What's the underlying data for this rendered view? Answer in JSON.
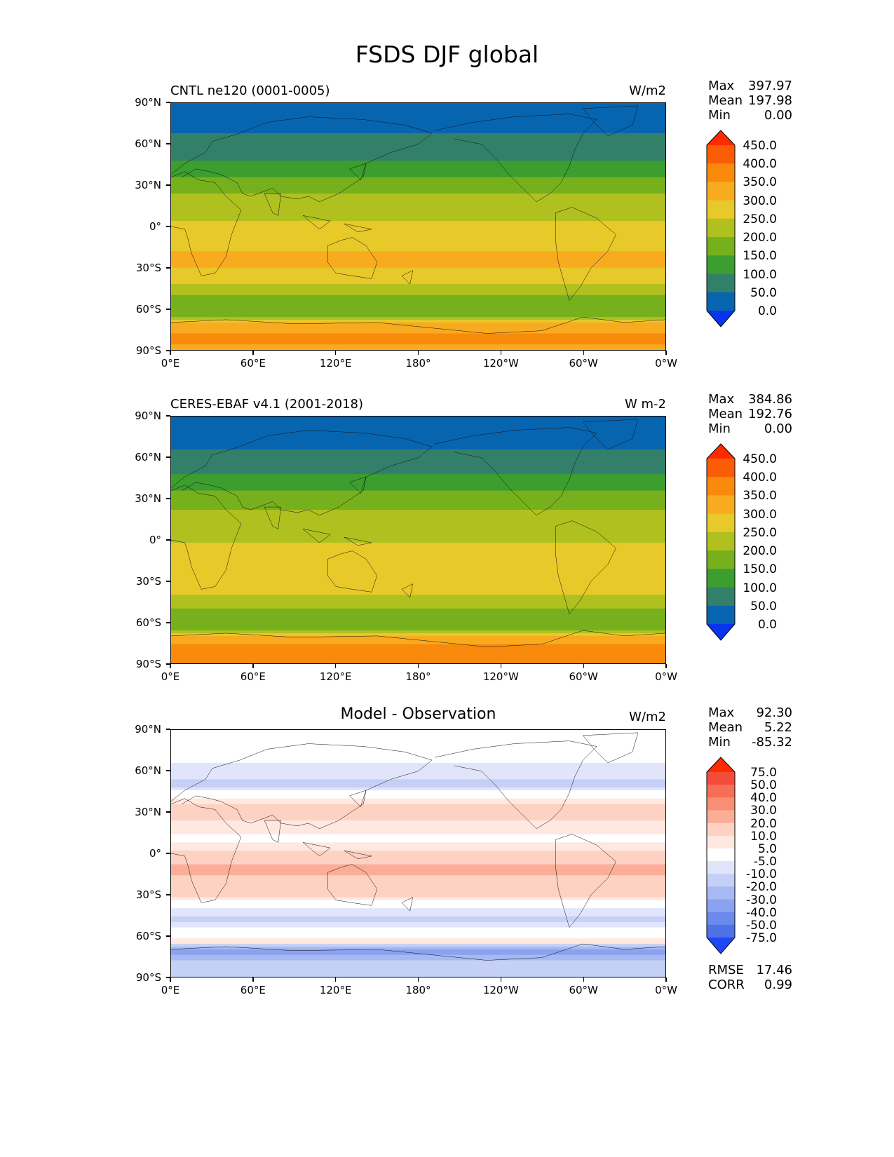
{
  "chart_data": {
    "type": "heatmap",
    "title": "FSDS DJF global",
    "x_ticks": [
      "0°E",
      "60°E",
      "120°E",
      "180°",
      "120°W",
      "60°W",
      "0°W"
    ],
    "y_ticks": [
      "90°N",
      "60°N",
      "30°N",
      "0°",
      "30°S",
      "60°S",
      "90°S"
    ],
    "xlim": [
      0,
      360
    ],
    "ylim": [
      -90,
      90
    ],
    "panels": [
      {
        "name": "model",
        "title_left": "CNTL ne120 (0001-0005)",
        "title_center": "",
        "units": "W/m2",
        "stats": [
          {
            "label": "Max",
            "value": "397.97"
          },
          {
            "label": "Mean",
            "value": "197.98"
          },
          {
            "label": "Min",
            "value": "0.00"
          }
        ],
        "colorbar_levels": [
          "450.0",
          "400.0",
          "350.0",
          "300.0",
          "250.0",
          "200.0",
          "150.0",
          "100.0",
          "50.0",
          "0.0"
        ],
        "colorbar_colors": [
          "#ff2a00",
          "#fb5d07",
          "#fa8a0c",
          "#f8ab1f",
          "#e7c929",
          "#b0c01f",
          "#77b01d",
          "#3c9e2e",
          "#33806a",
          "#0765b0",
          "#0834ee"
        ],
        "zonal_profile": [
          {
            "lat": 90,
            "value": 0
          },
          {
            "lat": 80,
            "value": 20
          },
          {
            "lat": 70,
            "value": 45
          },
          {
            "lat": 60,
            "value": 70
          },
          {
            "lat": 50,
            "value": 95
          },
          {
            "lat": 40,
            "value": 135
          },
          {
            "lat": 30,
            "value": 175
          },
          {
            "lat": 20,
            "value": 215
          },
          {
            "lat": 10,
            "value": 235
          },
          {
            "lat": 0,
            "value": 260
          },
          {
            "lat": -10,
            "value": 285
          },
          {
            "lat": -20,
            "value": 305
          },
          {
            "lat": -30,
            "value": 300
          },
          {
            "lat": -40,
            "value": 265
          },
          {
            "lat": -50,
            "value": 200
          },
          {
            "lat": -60,
            "value": 165
          },
          {
            "lat": -65,
            "value": 185
          },
          {
            "lat": -70,
            "value": 300
          },
          {
            "lat": -80,
            "value": 360
          },
          {
            "lat": -90,
            "value": 340
          }
        ]
      },
      {
        "name": "observation",
        "title_left": "CERES-EBAF v4.1 (2001-2018)",
        "title_center": "",
        "units": "W m-2",
        "stats": [
          {
            "label": "Max",
            "value": "384.86"
          },
          {
            "label": "Mean",
            "value": "192.76"
          },
          {
            "label": "Min",
            "value": "0.00"
          }
        ],
        "colorbar_levels": [
          "450.0",
          "400.0",
          "350.0",
          "300.0",
          "250.0",
          "200.0",
          "150.0",
          "100.0",
          "50.0",
          "0.0"
        ],
        "colorbar_colors": [
          "#ff2a00",
          "#fb5d07",
          "#fa8a0c",
          "#f8ab1f",
          "#e7c929",
          "#b0c01f",
          "#77b01d",
          "#3c9e2e",
          "#33806a",
          "#0765b0",
          "#0834ee"
        ],
        "zonal_profile": [
          {
            "lat": 90,
            "value": 0
          },
          {
            "lat": 80,
            "value": 20
          },
          {
            "lat": 70,
            "value": 40
          },
          {
            "lat": 60,
            "value": 65
          },
          {
            "lat": 50,
            "value": 90
          },
          {
            "lat": 40,
            "value": 130
          },
          {
            "lat": 30,
            "value": 170
          },
          {
            "lat": 20,
            "value": 205
          },
          {
            "lat": 10,
            "value": 225
          },
          {
            "lat": 0,
            "value": 245
          },
          {
            "lat": -10,
            "value": 270
          },
          {
            "lat": -20,
            "value": 290
          },
          {
            "lat": -30,
            "value": 285
          },
          {
            "lat": -40,
            "value": 255
          },
          {
            "lat": -50,
            "value": 195
          },
          {
            "lat": -60,
            "value": 165
          },
          {
            "lat": -65,
            "value": 190
          },
          {
            "lat": -70,
            "value": 320
          },
          {
            "lat": -80,
            "value": 375
          },
          {
            "lat": -90,
            "value": 360
          }
        ]
      },
      {
        "name": "difference",
        "title_left": "",
        "title_center": "Model - Observation",
        "units": "W/m2",
        "stats": [
          {
            "label": "Max",
            "value": "92.30"
          },
          {
            "label": "Mean",
            "value": "5.22"
          },
          {
            "label": "Min",
            "value": "-85.32"
          }
        ],
        "error_stats": [
          {
            "label": "RMSE",
            "value": "17.46"
          },
          {
            "label": "CORR",
            "value": "0.99"
          }
        ],
        "colorbar_levels": [
          "75.0",
          "50.0",
          "40.0",
          "30.0",
          "20.0",
          "10.0",
          "5.0",
          "-5.0",
          "-10.0",
          "-20.0",
          "-30.0",
          "-40.0",
          "-50.0",
          "-75.0"
        ],
        "colorbar_colors": [
          "#ff2a00",
          "#f34d3a",
          "#f66e55",
          "#f88e73",
          "#fbad96",
          "#fdd2c3",
          "#fee8e0",
          "#ffffff",
          "#e0e5fb",
          "#c4d0f6",
          "#a7b9f3",
          "#8aa2ef",
          "#6c8aeb",
          "#4d72e8",
          "#1f48f5"
        ],
        "zonal_profile": [
          {
            "lat": 90,
            "value": 0
          },
          {
            "lat": 75,
            "value": 0
          },
          {
            "lat": 60,
            "value": -8
          },
          {
            "lat": 50,
            "value": -12
          },
          {
            "lat": 40,
            "value": 6
          },
          {
            "lat": 30,
            "value": 14
          },
          {
            "lat": 20,
            "value": 8
          },
          {
            "lat": 10,
            "value": 3
          },
          {
            "lat": 0,
            "value": 12
          },
          {
            "lat": -10,
            "value": 22
          },
          {
            "lat": -20,
            "value": 18
          },
          {
            "lat": -30,
            "value": 12
          },
          {
            "lat": -40,
            "value": -6
          },
          {
            "lat": -50,
            "value": -12
          },
          {
            "lat": -58,
            "value": 4
          },
          {
            "lat": -65,
            "value": 6
          },
          {
            "lat": -70,
            "value": -38
          },
          {
            "lat": -78,
            "value": -18
          },
          {
            "lat": -90,
            "value": -12
          }
        ]
      }
    ]
  }
}
